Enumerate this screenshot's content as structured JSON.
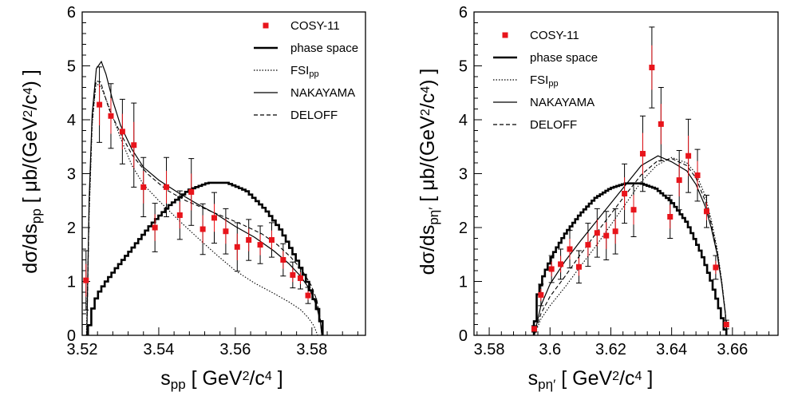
{
  "chart_data": [
    {
      "type": "scatter",
      "title": "",
      "xlabel": {
        "main": "s",
        "sub": "pp",
        "unit_open": " [ GeV",
        "unit_sup": "2",
        "unit_mid": "/c",
        "unit_sup2": "4",
        "unit_close": " ]"
      },
      "ylabel": {
        "main": "dσ/ds",
        "sub": "pp",
        "unit_open": " [ μb/(GeV",
        "unit_sup": "2",
        "unit_mid": "/c",
        "unit_sup2": "4",
        "unit_close": ") ]"
      },
      "xlim": [
        3.52,
        3.594
      ],
      "ylim": [
        0,
        6
      ],
      "xticks": [
        "3.52",
        "3.54",
        "3.56",
        "3.58"
      ],
      "yticks": [
        "0",
        "1",
        "2",
        "3",
        "4",
        "5",
        "6"
      ],
      "legend_position": "top-right",
      "legend": [
        {
          "label": "COSY-11",
          "sub": "",
          "style": "marker"
        },
        {
          "label": "phase space",
          "sub": "",
          "style": "thick"
        },
        {
          "label": "FSI",
          "sub": "pp",
          "style": "dotted"
        },
        {
          "label": "NAKAYAMA",
          "sub": "",
          "style": "solid"
        },
        {
          "label": "DELOFF",
          "sub": "",
          "style": "dashed"
        }
      ],
      "data_points": {
        "x": [
          3.521,
          3.5245,
          3.5275,
          3.5305,
          3.5335,
          3.536,
          3.539,
          3.542,
          3.5455,
          3.5485,
          3.5515,
          3.5545,
          3.5575,
          3.5605,
          3.5635,
          3.5665,
          3.5695,
          3.5725,
          3.575,
          3.577,
          3.579
        ],
        "y": [
          1.02,
          4.28,
          4.07,
          3.78,
          3.53,
          2.75,
          2.0,
          2.75,
          2.23,
          2.66,
          1.97,
          2.18,
          1.93,
          1.64,
          1.77,
          1.68,
          1.77,
          1.4,
          1.12,
          1.06,
          0.74
        ],
        "err": [
          0.55,
          0.7,
          0.6,
          0.6,
          0.78,
          0.55,
          0.45,
          0.55,
          0.45,
          0.62,
          0.47,
          0.47,
          0.42,
          0.45,
          0.38,
          0.35,
          0.32,
          0.3,
          0.24,
          0.2,
          0.15
        ]
      },
      "series": [
        {
          "name": "phase space",
          "style": "thick-step",
          "x": [
            3.5215,
            3.5225,
            3.524,
            3.526,
            3.529,
            3.533,
            3.538,
            3.543,
            3.548,
            3.553,
            3.558,
            3.563,
            3.568,
            3.572,
            3.576,
            3.579,
            3.581,
            3.5823,
            3.5828
          ],
          "y": [
            0,
            0.43,
            0.75,
            0.97,
            1.25,
            1.6,
            2.05,
            2.42,
            2.7,
            2.83,
            2.83,
            2.68,
            2.33,
            1.95,
            1.42,
            0.97,
            0.6,
            0.3,
            0
          ]
        },
        {
          "name": "FSI",
          "style": "dotted",
          "x": [
            3.5211,
            3.5218,
            3.5226,
            3.5236,
            3.525,
            3.5275,
            3.53,
            3.533,
            3.536,
            3.54,
            3.545,
            3.55,
            3.555,
            3.56,
            3.565,
            3.57,
            3.574,
            3.577,
            3.579,
            3.5805,
            3.5815
          ],
          "y": [
            0,
            2.2,
            3.9,
            4.68,
            4.6,
            4.15,
            3.66,
            3.15,
            2.8,
            2.5,
            2.15,
            1.82,
            1.5,
            1.2,
            0.97,
            0.78,
            0.62,
            0.48,
            0.33,
            0.18,
            0
          ]
        },
        {
          "name": "NAKAYAMA",
          "style": "solid",
          "x": [
            3.5212,
            3.5218,
            3.5226,
            3.5237,
            3.525,
            3.5262,
            3.528,
            3.53,
            3.533,
            3.536,
            3.54,
            3.545,
            3.55,
            3.555,
            3.56,
            3.565,
            3.57,
            3.574,
            3.577,
            3.5795,
            3.5812,
            3.5822,
            3.5826
          ],
          "y": [
            0,
            2.5,
            4.1,
            4.95,
            5.08,
            4.85,
            4.35,
            3.9,
            3.45,
            3.12,
            2.88,
            2.65,
            2.44,
            2.25,
            2.02,
            1.82,
            1.57,
            1.33,
            1.1,
            0.85,
            0.55,
            0.25,
            0
          ]
        },
        {
          "name": "DELOFF",
          "style": "dashed",
          "x": [
            3.5212,
            3.5218,
            3.5226,
            3.5236,
            3.5248,
            3.527,
            3.53,
            3.533,
            3.537,
            3.542,
            3.547,
            3.552,
            3.557,
            3.562,
            3.567,
            3.571,
            3.5745,
            3.5775,
            3.5798,
            3.5813,
            3.5822,
            3.5826
          ],
          "y": [
            0,
            2.3,
            3.95,
            4.72,
            4.7,
            4.2,
            3.75,
            3.35,
            3.0,
            2.7,
            2.5,
            2.35,
            2.2,
            2.05,
            1.88,
            1.68,
            1.45,
            1.2,
            0.93,
            0.65,
            0.3,
            0
          ]
        }
      ]
    },
    {
      "type": "scatter",
      "title": "",
      "xlabel": {
        "main": "s",
        "sub": "pη′",
        "unit_open": " [ GeV",
        "unit_sup": "2",
        "unit_mid": "/c",
        "unit_sup2": "4",
        "unit_close": " ]"
      },
      "ylabel": {
        "main": "dσ/ds",
        "sub": "pη′",
        "unit_open": " [ μb/(GeV",
        "unit_sup": "2",
        "unit_mid": "/c",
        "unit_sup2": "4",
        "unit_close": ") ]"
      },
      "xlim": [
        3.575,
        3.675
      ],
      "ylim": [
        0,
        6
      ],
      "xticks": [
        "3.58",
        "3.6",
        "3.62",
        "3.64",
        "3.66"
      ],
      "yticks": [
        "0",
        "1",
        "2",
        "3",
        "4",
        "5",
        "6"
      ],
      "legend_position": "top-left",
      "legend": [
        {
          "label": "COSY-11",
          "sub": "",
          "style": "marker"
        },
        {
          "label": "phase space",
          "sub": "",
          "style": "thick"
        },
        {
          "label": "FSI",
          "sub": "pp",
          "style": "dotted"
        },
        {
          "label": "NAKAYAMA",
          "sub": "",
          "style": "solid"
        },
        {
          "label": "DELOFF",
          "sub": "",
          "style": "dashed"
        }
      ],
      "data_points": {
        "x": [
          3.5948,
          3.597,
          3.6005,
          3.6035,
          3.6065,
          3.6095,
          3.6125,
          3.6155,
          3.6185,
          3.6215,
          3.6245,
          3.6275,
          3.6305,
          3.6335,
          3.6365,
          3.6395,
          3.6425,
          3.6455,
          3.6485,
          3.6515,
          3.6545,
          3.658
        ],
        "y": [
          0.12,
          0.75,
          1.23,
          1.32,
          1.6,
          1.27,
          1.68,
          1.9,
          1.85,
          1.93,
          2.63,
          2.33,
          3.37,
          4.97,
          3.92,
          2.2,
          2.88,
          3.33,
          2.97,
          2.3,
          1.26,
          0.2
        ],
        "err": [
          0.06,
          0.2,
          0.25,
          0.28,
          0.35,
          0.3,
          0.4,
          0.45,
          0.45,
          0.42,
          0.55,
          0.5,
          0.7,
          0.75,
          0.68,
          0.4,
          0.55,
          0.68,
          0.48,
          0.3,
          0.22,
          0.08
        ]
      },
      "series": [
        {
          "name": "phase space",
          "style": "thick-step",
          "x": [
            3.5947,
            3.596,
            3.598,
            3.601,
            3.605,
            3.61,
            3.615,
            3.62,
            3.625,
            3.63,
            3.635,
            3.64,
            3.645,
            3.65,
            3.653,
            3.655,
            3.6565,
            3.6575,
            3.658
          ],
          "y": [
            0,
            0.75,
            1.12,
            1.5,
            1.88,
            2.25,
            2.55,
            2.73,
            2.82,
            2.82,
            2.72,
            2.48,
            2.1,
            1.5,
            1.02,
            0.65,
            0.35,
            0.12,
            0
          ]
        },
        {
          "name": "FSI",
          "style": "dotted",
          "x": [
            3.5948,
            3.597,
            3.6,
            3.605,
            3.61,
            3.615,
            3.62,
            3.625,
            3.63,
            3.635,
            3.64,
            3.645,
            3.648,
            3.651,
            3.653,
            3.655,
            3.6565,
            3.6577,
            3.6582
          ],
          "y": [
            0,
            0.3,
            0.55,
            0.9,
            1.28,
            1.65,
            2.05,
            2.45,
            2.85,
            3.15,
            3.3,
            3.2,
            3.0,
            2.6,
            2.15,
            1.6,
            1.0,
            0.4,
            0
          ]
        },
        {
          "name": "NAKAYAMA",
          "style": "solid",
          "x": [
            3.5948,
            3.597,
            3.6,
            3.605,
            3.61,
            3.615,
            3.62,
            3.625,
            3.63,
            3.6355,
            3.64,
            3.645,
            3.648,
            3.651,
            3.653,
            3.655,
            3.6565,
            3.6577,
            3.6582
          ],
          "y": [
            0,
            0.55,
            0.95,
            1.38,
            1.75,
            2.1,
            2.45,
            2.8,
            3.15,
            3.33,
            3.22,
            3.05,
            2.8,
            2.4,
            2.0,
            1.5,
            0.95,
            0.38,
            0
          ]
        },
        {
          "name": "DELOFF",
          "style": "dashed",
          "x": [
            3.5948,
            3.597,
            3.6,
            3.605,
            3.61,
            3.615,
            3.62,
            3.625,
            3.63,
            3.635,
            3.64,
            3.645,
            3.648,
            3.651,
            3.653,
            3.655,
            3.6565,
            3.6577,
            3.6582
          ],
          "y": [
            0,
            0.4,
            0.72,
            1.1,
            1.5,
            1.88,
            2.25,
            2.62,
            2.98,
            3.22,
            3.28,
            3.15,
            2.92,
            2.5,
            2.08,
            1.55,
            0.98,
            0.4,
            0
          ]
        }
      ]
    }
  ],
  "colors": {
    "marker": "#e8141b",
    "line": "#000000",
    "axis": "#000000"
  }
}
